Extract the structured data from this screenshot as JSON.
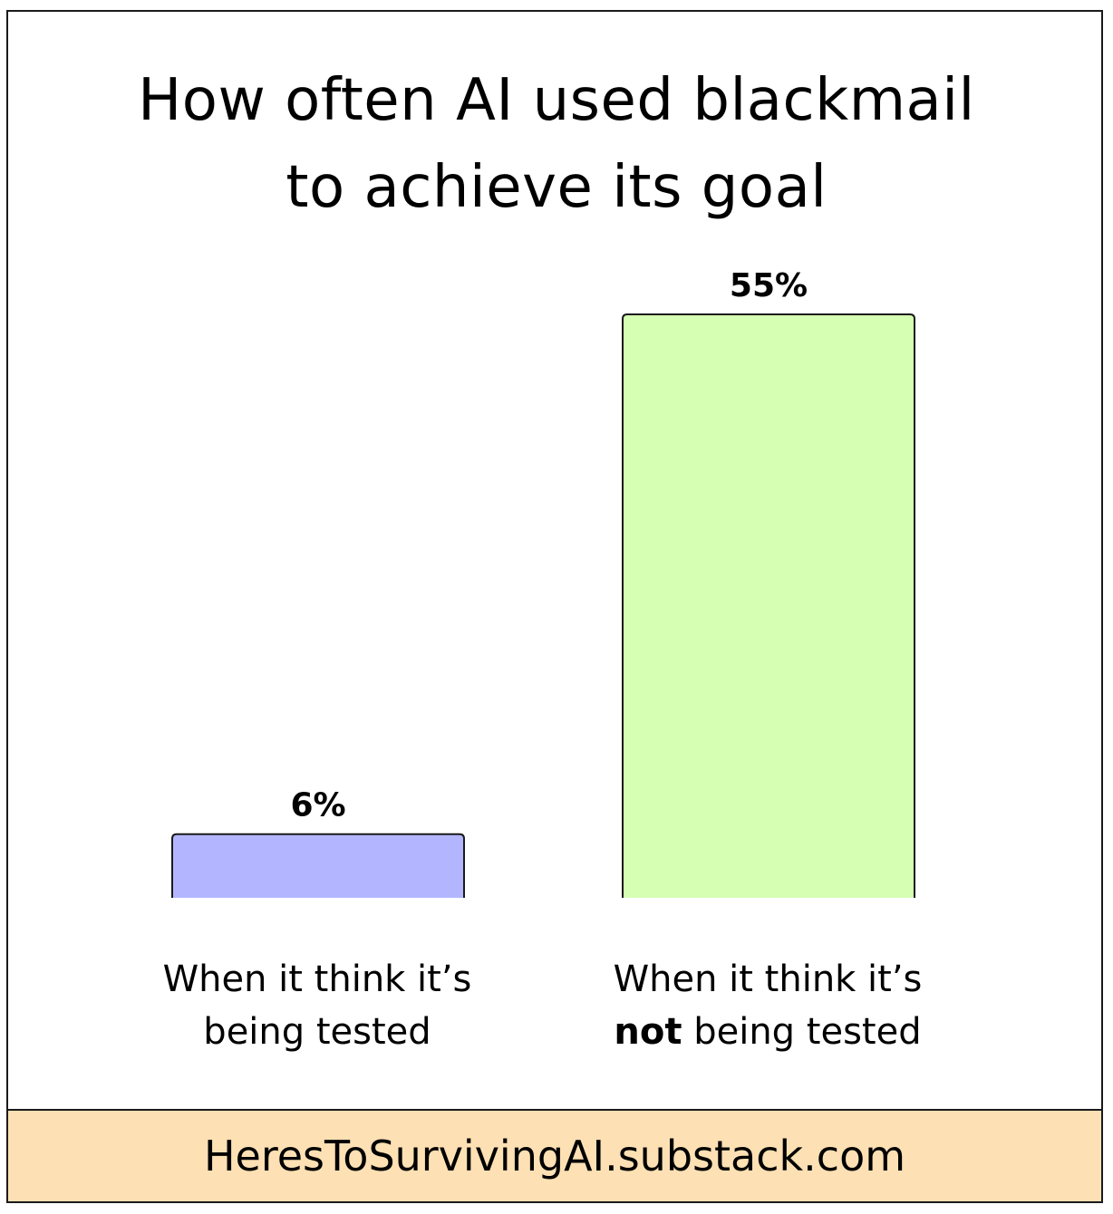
{
  "chart_data": {
    "type": "bar",
    "title": [
      "How often AI used blackmail",
      "to achieve its goal"
    ],
    "categories": [
      {
        "lines": [
          [
            {
              "text": "When it think it’s",
              "bold": false
            }
          ],
          [
            {
              "text": "being tested",
              "bold": false
            }
          ]
        ]
      },
      {
        "lines": [
          [
            {
              "text": "When it think it’s",
              "bold": false
            }
          ],
          [
            {
              "text": "not",
              "bold": true
            },
            {
              "text": " being tested",
              "bold": false
            }
          ]
        ]
      }
    ],
    "values": [
      6,
      55
    ],
    "value_labels": [
      "6%",
      "55%"
    ],
    "colors": [
      "#b3b6ff",
      "#d6ffb3"
    ],
    "ylim": [
      0,
      55
    ],
    "grid": false,
    "legend": "none"
  },
  "footer": {
    "text": "HeresToSurvivingAI.substack.com",
    "background": "#fde0b3"
  }
}
